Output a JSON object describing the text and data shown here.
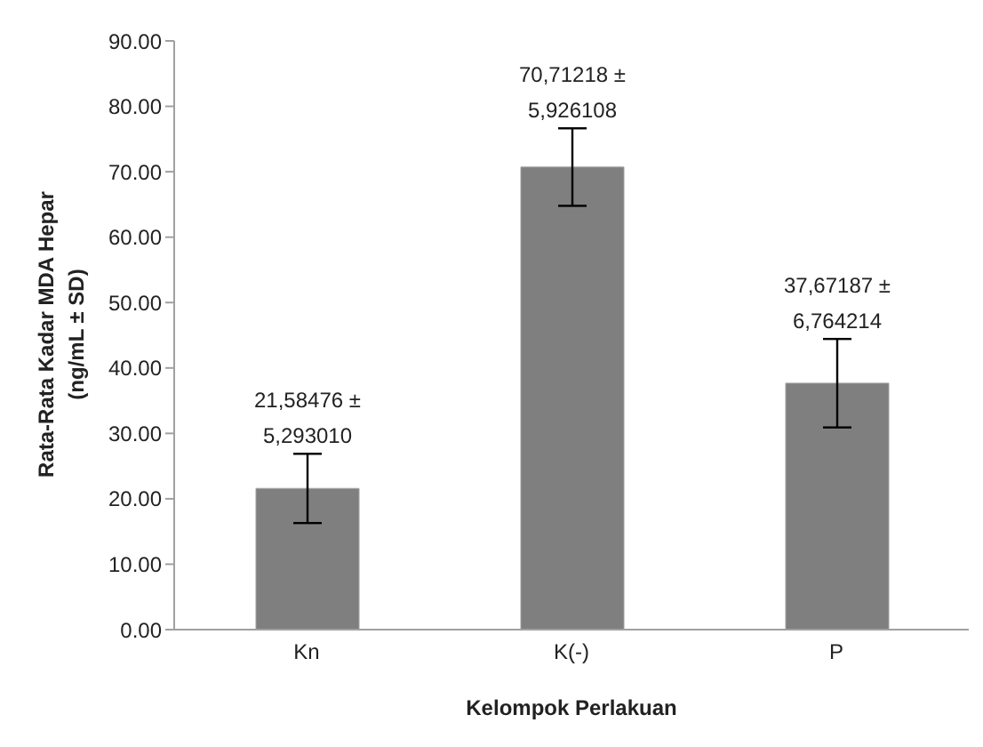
{
  "chart_data": {
    "type": "bar",
    "xlabel": "Kelompok Perlakuan",
    "ylabel": "Rata-Rata Kadar MDA Hepar\n(ng/mL ± SD)",
    "categories": [
      "Kn",
      "K(-)",
      "P"
    ],
    "values": [
      21.58476,
      70.71218,
      37.67187
    ],
    "errors": [
      5.29301,
      5.926108,
      6.764214
    ],
    "value_labels": [
      "21,58476 ± 5,293010",
      "70,71218 ± 5,926108",
      "37,67187 ± 6,764214"
    ],
    "color": "#7f7f7f",
    "ylim": [
      0,
      90
    ],
    "yticks": [
      {
        "value": 0,
        "label": "0.00"
      },
      {
        "value": 10,
        "label": "10.00"
      },
      {
        "value": 20,
        "label": "20.00"
      },
      {
        "value": 30,
        "label": "30.00"
      },
      {
        "value": 40,
        "label": "40.00"
      },
      {
        "value": 50,
        "label": "50.00"
      },
      {
        "value": 60,
        "label": "60.00"
      },
      {
        "value": 70,
        "label": "70.00"
      },
      {
        "value": 80,
        "label": "80.00"
      },
      {
        "value": 90,
        "label": "90.00"
      }
    ],
    "grid": false,
    "legend": false
  }
}
